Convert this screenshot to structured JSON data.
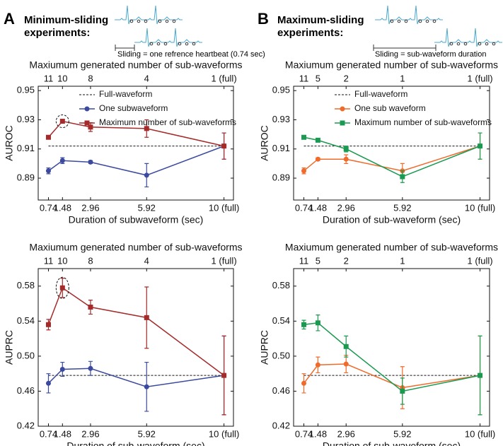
{
  "panels": [
    {
      "label": "A",
      "title": "Minimum-sliding experiments:",
      "note": "Sliding = one refrence heartbeat (0.74 sec)"
    },
    {
      "label": "B",
      "title": "Maximum-sliding experiments:",
      "note": "Sliding = sub-waveform duration"
    }
  ],
  "chart_data": [
    {
      "type": "line",
      "x": [
        0.74,
        1.48,
        2.96,
        5.92,
        10
      ],
      "xlim": [
        0.2,
        10.5
      ],
      "xticks": [
        0.74,
        1.48,
        2.96,
        5.92,
        {
          "value": 10,
          "label": "10 (full)"
        }
      ],
      "x2ticks": [
        {
          "value": 0.74,
          "label": "11"
        },
        {
          "value": 1.48,
          "label": "10"
        },
        {
          "value": 2.96,
          "label": "8"
        },
        {
          "value": 5.92,
          "label": "4"
        },
        {
          "value": 10,
          "label": "1 (full)"
        }
      ],
      "xlabel": "Duration of subwaveform (sec)",
      "x2label": "Maxiumum generated number of sub-waveforms",
      "ylabel": "AUROC",
      "ylim": [
        0.875,
        0.953
      ],
      "yticks": [
        0.89,
        0.91,
        0.93,
        0.95
      ],
      "legend": true,
      "reference": {
        "name": "Full-waveform",
        "value": 0.912
      },
      "series": [
        {
          "name": "One subwaveform",
          "color": "#3b4a9e",
          "marker": "circle",
          "values": [
            0.895,
            0.902,
            0.901,
            0.892,
            0.912
          ],
          "errors": [
            0.002,
            0.002,
            0.001,
            0.008,
            0.009
          ]
        },
        {
          "name": "Maximum number of sub-waveforms",
          "color": "#a52a2a",
          "marker": "square",
          "values": [
            0.918,
            0.929,
            0.925,
            0.924,
            0.912
          ],
          "errors": [
            0.001,
            0.001,
            0.003,
            0.006,
            0.009
          ]
        }
      ]
    },
    {
      "type": "line",
      "x": [
        0.74,
        1.48,
        2.96,
        5.92,
        10
      ],
      "xlim": [
        0.2,
        10.5
      ],
      "xticks": [
        0.74,
        1.48,
        2.96,
        5.92,
        {
          "value": 10,
          "label": "10 (full)"
        }
      ],
      "x2ticks": [
        {
          "value": 0.74,
          "label": "11"
        },
        {
          "value": 1.48,
          "label": "5"
        },
        {
          "value": 2.96,
          "label": "2"
        },
        {
          "value": 5.92,
          "label": "1"
        },
        {
          "value": 10,
          "label": "1 (full)"
        }
      ],
      "xlabel": "Duration of sub-waveform (sec)",
      "x2label": "Maxiumum generated number of sub-waveforms",
      "ylabel": "AUROC",
      "ylim": [
        0.875,
        0.953
      ],
      "yticks": [
        0.89,
        0.91,
        0.93,
        0.95
      ],
      "legend": true,
      "reference": {
        "name": "Full-waveform",
        "value": 0.912
      },
      "series": [
        {
          "name": "One sub waveform",
          "color": "#f06a2a",
          "marker": "circle",
          "values": [
            0.895,
            0.903,
            0.903,
            0.895,
            0.912
          ],
          "errors": [
            0.002,
            0.001,
            0.003,
            0.005,
            0.009
          ]
        },
        {
          "name": "Maximum number of sub-waveforms",
          "color": "#1a9a50",
          "marker": "square",
          "values": [
            0.918,
            0.916,
            0.91,
            0.891,
            0.912
          ],
          "errors": [
            0.001,
            0.001,
            0.002,
            0.004,
            0.009
          ]
        }
      ]
    },
    {
      "type": "line",
      "x": [
        0.74,
        1.48,
        2.96,
        5.92,
        10
      ],
      "xlim": [
        0.2,
        10.5
      ],
      "xticks": [
        0.74,
        1.48,
        2.96,
        5.92,
        {
          "value": 10,
          "label": "10 (full)"
        }
      ],
      "x2ticks": [
        {
          "value": 0.74,
          "label": "11"
        },
        {
          "value": 1.48,
          "label": "10"
        },
        {
          "value": 2.96,
          "label": "8"
        },
        {
          "value": 5.92,
          "label": "4"
        },
        {
          "value": 10,
          "label": "1 (full)"
        }
      ],
      "xlabel": "Duration of sub-waveform (sec)",
      "x2label": "Maxiumum generated number of sub-waveforms",
      "ylabel": "AUPRC",
      "ylim": [
        0.42,
        0.6
      ],
      "yticks": [
        0.42,
        0.46,
        {
          "value": 0.5,
          "label": "0.50"
        },
        0.54,
        0.58
      ],
      "legend": false,
      "reference": {
        "value": 0.478
      },
      "series": [
        {
          "color": "#3b4a9e",
          "marker": "circle",
          "values": [
            0.469,
            0.485,
            0.486,
            0.465,
            0.478
          ],
          "errors": [
            0.011,
            0.008,
            0.008,
            0.028,
            0.045
          ]
        },
        {
          "color": "#a52a2a",
          "marker": "square",
          "values": [
            0.536,
            0.578,
            0.556,
            0.544,
            0.478
          ],
          "errors": [
            0.006,
            0.011,
            0.008,
            0.035,
            0.045
          ]
        }
      ]
    },
    {
      "type": "line",
      "x": [
        0.74,
        1.48,
        2.96,
        5.92,
        10
      ],
      "xlim": [
        0.2,
        10.5
      ],
      "xticks": [
        0.74,
        1.48,
        2.96,
        5.92,
        {
          "value": 10,
          "label": "10 (full)"
        }
      ],
      "x2ticks": [
        {
          "value": 0.74,
          "label": "11"
        },
        {
          "value": 1.48,
          "label": "5"
        },
        {
          "value": 2.96,
          "label": "2"
        },
        {
          "value": 5.92,
          "label": "1"
        },
        {
          "value": 10,
          "label": "1 (full)"
        }
      ],
      "xlabel": "Duration of sub-waveform (sec)",
      "x2label": "Maxiumum generated number of sub-waveforms",
      "ylabel": "AUPRC",
      "ylim": [
        0.42,
        0.6
      ],
      "yticks": [
        0.42,
        0.46,
        {
          "value": 0.5,
          "label": "0.50"
        },
        0.54,
        0.58
      ],
      "legend": false,
      "reference": {
        "value": 0.478
      },
      "series": [
        {
          "color": "#f06a2a",
          "marker": "circle",
          "values": [
            0.469,
            0.49,
            0.491,
            0.464,
            0.478
          ],
          "errors": [
            0.011,
            0.009,
            0.01,
            0.024,
            0.045
          ]
        },
        {
          "color": "#1a9a50",
          "marker": "square",
          "values": [
            0.536,
            0.538,
            0.511,
            0.46,
            0.478
          ],
          "errors": [
            0.005,
            0.009,
            0.012,
            0.015,
            0.045
          ]
        }
      ]
    }
  ]
}
